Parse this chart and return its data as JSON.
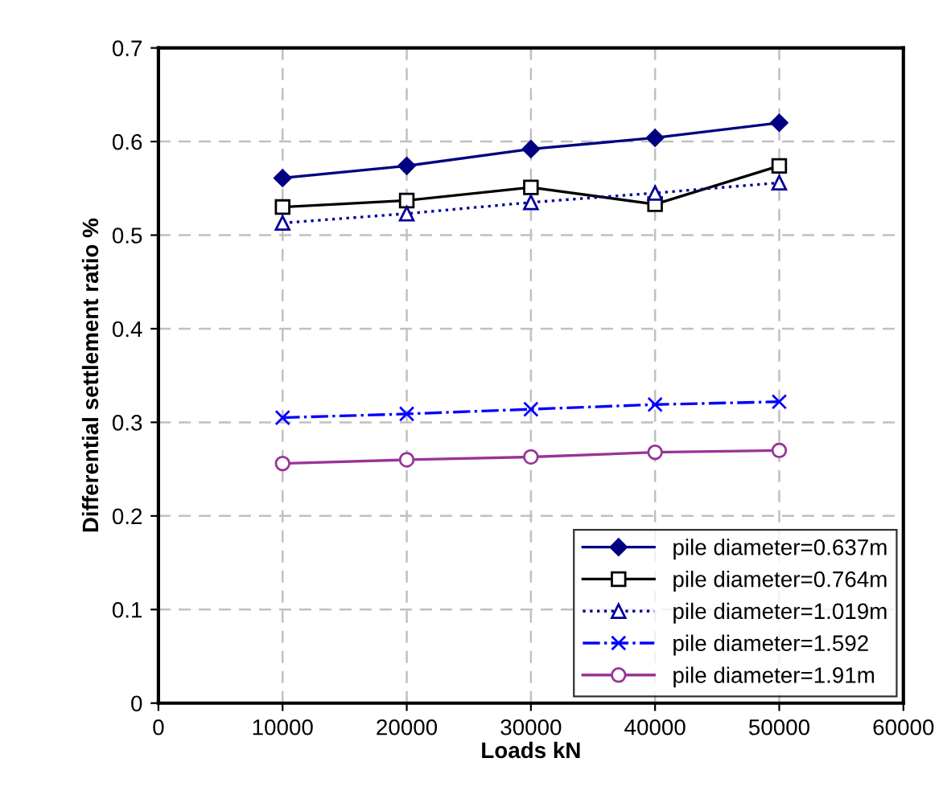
{
  "chart_data": {
    "type": "line",
    "xlabel": "Loads kN",
    "ylabel": "Differential settlement ratio %",
    "x": [
      10000,
      20000,
      30000,
      40000,
      50000
    ],
    "series": [
      {
        "name": "pile diameter=0.637m",
        "color": "#000080",
        "marker": "diamond",
        "line_style": "solid",
        "values": [
          0.561,
          0.574,
          0.592,
          0.604,
          0.62
        ]
      },
      {
        "name": "pile diameter=0.764m",
        "color": "#000000",
        "marker": "square",
        "line_style": "solid",
        "values": [
          0.53,
          0.537,
          0.551,
          0.533,
          0.574
        ]
      },
      {
        "name": "pile diameter=1.019m",
        "color": "#000099",
        "marker": "triangle",
        "line_style": "dotted",
        "values": [
          0.513,
          0.523,
          0.535,
          0.545,
          0.556
        ]
      },
      {
        "name": "pile diameter=1.592",
        "color": "#0000ff",
        "marker": "cross",
        "line_style": "dashdot",
        "values": [
          0.305,
          0.309,
          0.314,
          0.319,
          0.322
        ]
      },
      {
        "name": "pile diameter=1.91m",
        "color": "#993399",
        "marker": "circle",
        "line_style": "solid",
        "values": [
          0.256,
          0.26,
          0.263,
          0.268,
          0.27
        ]
      }
    ],
    "xlim": [
      0,
      60000
    ],
    "xticks": [
      0,
      10000,
      20000,
      30000,
      40000,
      50000,
      60000
    ],
    "ylim": [
      0,
      0.7
    ],
    "yticks": [
      0,
      0.1,
      0.2,
      0.3,
      0.4,
      0.5,
      0.6,
      0.7
    ],
    "grid": true,
    "legend": "bottom right"
  }
}
